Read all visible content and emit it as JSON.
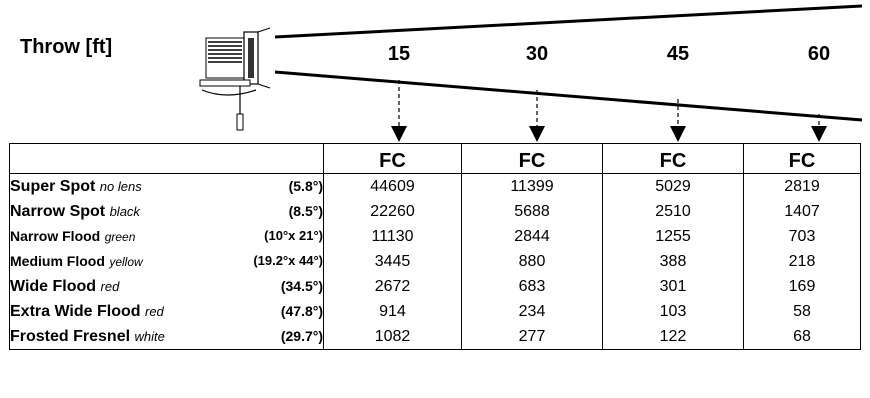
{
  "header": {
    "throw_label": "Throw [ft]",
    "distances": [
      "15",
      "30",
      "45",
      "60"
    ]
  },
  "table": {
    "unit_header": "FC",
    "rows": [
      {
        "name": "Super Spot",
        "color": "no lens",
        "angle": "(5.8°)",
        "values": [
          "44609",
          "11399",
          "5029",
          "2819"
        ]
      },
      {
        "name": "Narrow Spot",
        "color": "black",
        "angle": "(8.5°)",
        "values": [
          "22260",
          "5688",
          "2510",
          "1407"
        ]
      },
      {
        "name": "Narrow Flood",
        "color": "green",
        "angle": "(10°x 21°)",
        "values": [
          "11130",
          "2844",
          "1255",
          "703"
        ]
      },
      {
        "name": "Medium Flood",
        "color": "yellow",
        "angle": "(19.2°x 44°)",
        "values": [
          "3445",
          "880",
          "388",
          "218"
        ]
      },
      {
        "name": "Wide Flood",
        "color": "red",
        "angle": "(34.5°)",
        "values": [
          "2672",
          "683",
          "301",
          "169"
        ]
      },
      {
        "name": "Extra Wide Flood",
        "color": "red",
        "angle": "(47.8°)",
        "values": [
          "914",
          "234",
          "103",
          "58"
        ]
      },
      {
        "name": "Frosted Fresnel",
        "color": "white",
        "angle": "(29.7°)",
        "values": [
          "1082",
          "277",
          "122",
          "68"
        ]
      }
    ]
  }
}
